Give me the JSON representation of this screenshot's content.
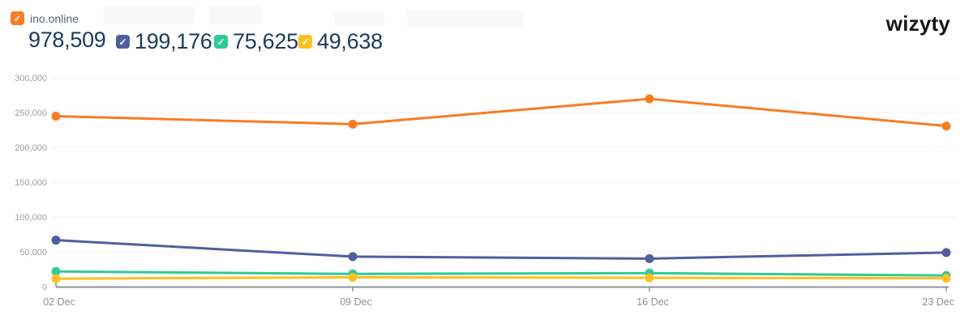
{
  "logo_text": "wizyty",
  "legend": {
    "check_glyph": "✓",
    "redacted_labels_count": 4
  },
  "chart_data": {
    "type": "line",
    "x": [
      "02 Dec",
      "09 Dec",
      "16 Dec",
      "23 Dec"
    ],
    "y_ticks": [
      0,
      50000,
      100000,
      150000,
      200000,
      250000,
      300000
    ],
    "ylim": [
      0,
      312500
    ],
    "grid": true,
    "legend_position": "top-left",
    "series": [
      {
        "name": "ino.online",
        "total": "978,509",
        "color": "#f97c22",
        "checked": true,
        "values": [
          244800,
          233300,
          269700,
          230709
        ]
      },
      {
        "name": "",
        "total": "199,176",
        "color": "#4f5f9e",
        "checked": true,
        "values": [
          66800,
          43100,
          40300,
          48976
        ]
      },
      {
        "name": "",
        "total": "75,625",
        "color": "#2fcb94",
        "checked": true,
        "values": [
          21800,
          18300,
          19500,
          16025
        ]
      },
      {
        "name": "",
        "total": "49,638",
        "color": "#fdc01f",
        "checked": true,
        "values": [
          11500,
          13400,
          12700,
          12038
        ]
      }
    ],
    "axis_colors": {
      "axis_line": "#8e9297",
      "gridline": "#f0f1f3",
      "tick_label": "#9aa0a6",
      "x_label": "#8d929b"
    }
  }
}
